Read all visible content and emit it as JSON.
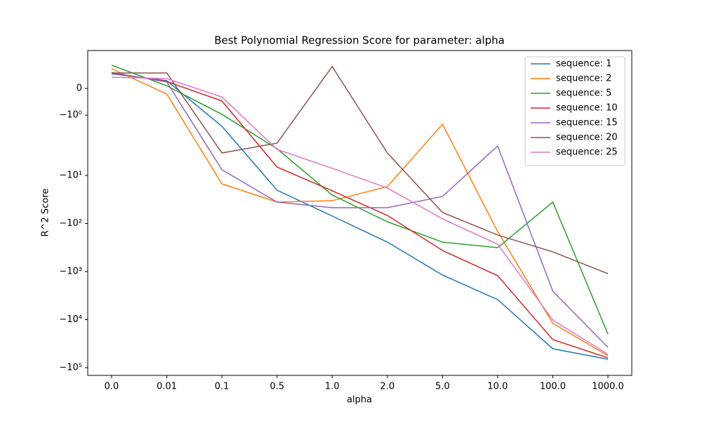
{
  "chart_data": {
    "type": "line",
    "title": "Best Polynomial Regression Score for parameter: alpha",
    "x_label": "alpha",
    "y_label": "R^2 Score",
    "categories": [
      "0.0",
      "0.01",
      "0.1",
      "0.5",
      "1.0",
      "2.0",
      "5.0",
      "10.0",
      "100.0",
      "1000.0"
    ],
    "yscale": "symlog",
    "linthresh": 2,
    "ylim": [
      -145000,
      1.42
    ],
    "yticks": [
      0,
      {
        "value": -1,
        "label": "−10⁰"
      },
      {
        "value": -10,
        "label": "−10¹"
      },
      {
        "value": -100,
        "label": "−10²"
      },
      {
        "value": -1000,
        "label": "−10³"
      },
      {
        "value": -10000,
        "label": "−10⁴"
      },
      {
        "value": -100000,
        "label": "−10⁵"
      }
    ],
    "legend": "upper right",
    "series": [
      {
        "name": "sequence: 1",
        "color": "#1f77b4",
        "values": [
          0.55,
          0.29,
          -1.42,
          -20.3,
          -70,
          -244,
          -1183,
          -3840,
          -40400,
          -66900
        ]
      },
      {
        "name": "sequence: 2",
        "color": "#ff7f0e",
        "values": [
          0.74,
          -0.21,
          -14.96,
          -35.9,
          -33.6,
          -17.1,
          -1.34,
          -147,
          -12000,
          -56500
        ]
      },
      {
        "name": "sequence: 5",
        "color": "#2ca02c",
        "values": [
          0.87,
          0.1,
          -0.97,
          -2.79,
          -25.6,
          -92,
          -244,
          -319,
          -35.9,
          -19900
        ]
      },
      {
        "name": "sequence: 10",
        "color": "#d62728",
        "values": [
          0.58,
          0.26,
          -0.47,
          -6.7,
          -20.9,
          -68,
          -365,
          -1220,
          -26100,
          -62500
        ]
      },
      {
        "name": "sequence: 15",
        "color": "#9467bd",
        "values": [
          0.6,
          0.24,
          -7.6,
          -35.9,
          -47,
          -47,
          -27.4,
          -2.44,
          -2560,
          -37800
        ]
      },
      {
        "name": "sequence: 20",
        "color": "#8c564b",
        "values": [
          0.58,
          0.58,
          -3.41,
          -2.13,
          0.82,
          -3.41,
          -59,
          -174,
          -390,
          -1107
        ]
      },
      {
        "name": "sequence: 25",
        "color": "#e377c2",
        "values": [
          0.42,
          0.37,
          -0.32,
          -2.88,
          -7.1,
          -18.3,
          -80,
          -270,
          -10200,
          -52800
        ]
      }
    ]
  }
}
